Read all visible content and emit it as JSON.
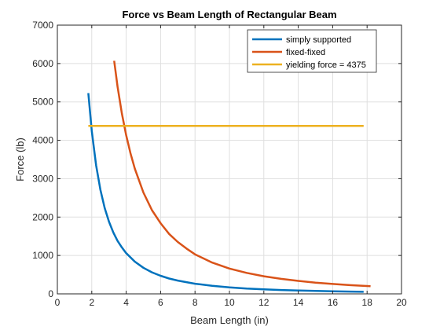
{
  "chart_data": {
    "type": "line",
    "title": "Force vs Beam Length of Rectangular Beam",
    "xlabel": "Beam Length (in)",
    "ylabel": "Force (lb)",
    "xlim": [
      0,
      20
    ],
    "ylim": [
      0,
      7000
    ],
    "xticks": [
      0,
      2,
      4,
      6,
      8,
      10,
      12,
      14,
      16,
      18,
      20
    ],
    "yticks": [
      0,
      1000,
      2000,
      3000,
      4000,
      5000,
      6000,
      7000
    ],
    "grid": true,
    "legend_position": "top-right",
    "series": [
      {
        "name": "simply supported",
        "color": "#0072bd",
        "x": [
          1.8,
          2,
          2.25,
          2.5,
          2.75,
          3,
          3.25,
          3.5,
          3.75,
          4,
          4.5,
          5,
          5.5,
          6,
          6.5,
          7,
          8,
          9,
          10,
          11,
          12,
          13,
          14,
          15,
          16,
          17,
          17.8
        ],
        "y": [
          5230,
          4240,
          3350,
          2710,
          2240,
          1880,
          1600,
          1380,
          1210,
          1060,
          840,
          680,
          560,
          470,
          400,
          345,
          265,
          210,
          170,
          140,
          118,
          100,
          87,
          75,
          66,
          59,
          54
        ]
      },
      {
        "name": "fixed-fixed",
        "color": "#d95319",
        "x": [
          3.3,
          3.5,
          3.75,
          4,
          4.25,
          4.5,
          5,
          5.5,
          6,
          6.5,
          7,
          7.5,
          8,
          9,
          10,
          11,
          12,
          13,
          14,
          15,
          16,
          17,
          18.2
        ],
        "y": [
          6070,
          5400,
          4700,
          4130,
          3660,
          3260,
          2640,
          2180,
          1840,
          1560,
          1350,
          1180,
          1030,
          815,
          660,
          546,
          459,
          391,
          337,
          293,
          258,
          228,
          199
        ]
      },
      {
        "name": "yielding force = 4375",
        "color": "#edb120",
        "x": [
          1.8,
          17.8
        ],
        "y": [
          4375,
          4375
        ]
      }
    ]
  }
}
